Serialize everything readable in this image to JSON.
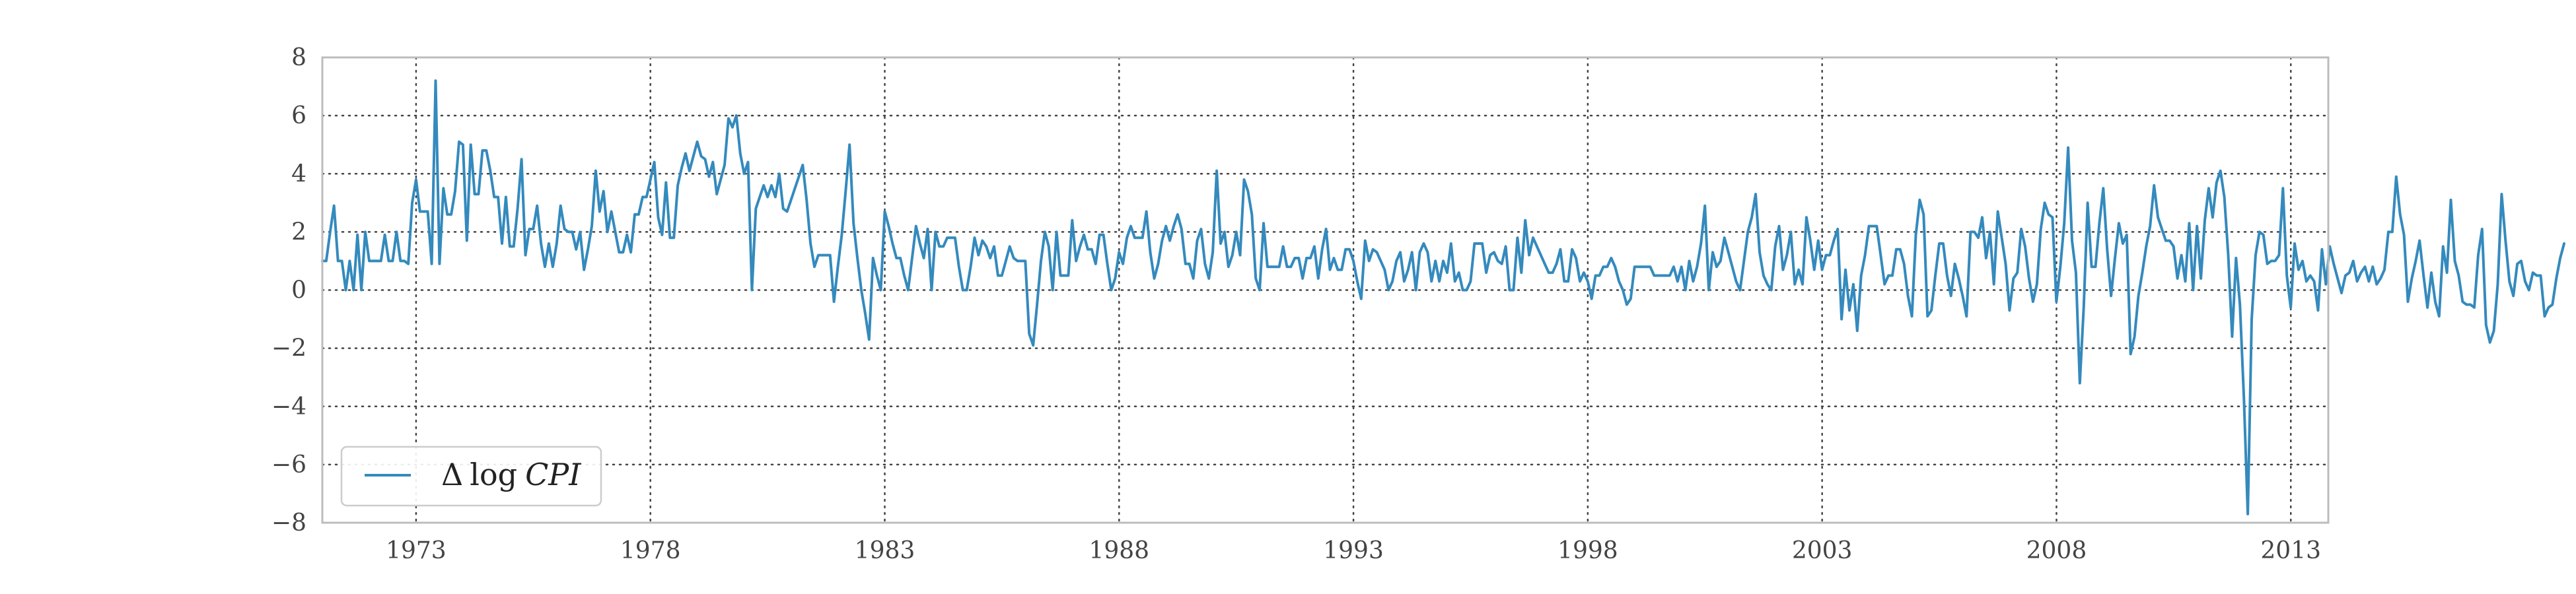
{
  "chart_data": {
    "type": "line",
    "xlabel": "",
    "ylabel": "",
    "xlim": [
      1971.0,
      2013.8
    ],
    "ylim": [
      -8,
      8
    ],
    "x_ticks": [
      1973,
      1978,
      1983,
      1988,
      1993,
      1998,
      2003,
      2008,
      2013
    ],
    "x_tick_labels": [
      "1973",
      "1978",
      "1983",
      "1988",
      "1993",
      "1998",
      "2003",
      "2008",
      "2013"
    ],
    "y_ticks": [
      -8,
      -6,
      -4,
      -2,
      0,
      2,
      4,
      6,
      8
    ],
    "y_tick_labels": [
      "−8",
      "−6",
      "−4",
      "−2",
      "0",
      "2",
      "4",
      "6",
      "8"
    ],
    "grid": true,
    "legend": {
      "placement": "lower-left",
      "label_symbol": "Δ",
      "label_func": "log",
      "label_var": "CPI"
    },
    "series": [
      {
        "name": "Δ log CPI",
        "color": "#348ABD",
        "x_start": 1971.0,
        "x_step": 0.08333,
        "values": [
          1.0,
          1.0,
          2.0,
          2.9,
          1.0,
          1.0,
          0.0,
          1.0,
          0.0,
          1.9,
          0.0,
          2.0,
          1.0,
          1.0,
          1.0,
          1.0,
          1.9,
          1.0,
          1.0,
          2.0,
          1.0,
          1.0,
          0.9,
          3.0,
          3.8,
          2.7,
          2.7,
          2.7,
          0.9,
          7.2,
          0.9,
          3.5,
          2.6,
          2.6,
          3.4,
          5.1,
          5.0,
          1.7,
          5.0,
          3.3,
          3.3,
          4.8,
          4.8,
          4.1,
          3.2,
          3.2,
          1.6,
          3.2,
          1.5,
          1.5,
          2.8,
          4.5,
          1.2,
          2.1,
          2.1,
          2.9,
          1.6,
          0.8,
          1.6,
          0.8,
          1.6,
          2.9,
          2.1,
          2.0,
          2.0,
          1.4,
          2.0,
          0.7,
          1.4,
          2.2,
          4.1,
          2.7,
          3.4,
          2.0,
          2.7,
          2.0,
          1.3,
          1.3,
          1.9,
          1.3,
          2.6,
          2.6,
          3.2,
          3.2,
          3.8,
          4.4,
          2.5,
          1.9,
          3.7,
          1.8,
          1.8,
          3.6,
          4.2,
          4.7,
          4.1,
          4.6,
          5.1,
          4.6,
          4.5,
          3.9,
          4.4,
          3.3,
          3.8,
          4.3,
          5.9,
          5.6,
          6.0,
          4.7,
          4.0,
          4.4,
          0.0,
          2.8,
          3.2,
          3.6,
          3.2,
          3.6,
          3.2,
          4.0,
          2.8,
          2.7,
          3.1,
          3.5,
          3.9,
          4.3,
          3.1,
          1.6,
          0.8,
          1.2,
          1.2,
          1.2,
          1.2,
          -0.4,
          0.8,
          1.9,
          3.4,
          5.0,
          2.3,
          1.1,
          0.0,
          -0.8,
          -1.7,
          1.1,
          0.5,
          0.0,
          2.7,
          2.2,
          1.6,
          1.1,
          1.1,
          0.5,
          0.0,
          1.1,
          2.2,
          1.6,
          1.1,
          2.1,
          0.0,
          2.0,
          1.5,
          1.5,
          1.8,
          1.8,
          1.8,
          0.8,
          0.0,
          0.0,
          0.8,
          1.8,
          1.2,
          1.7,
          1.5,
          1.1,
          1.5,
          0.5,
          0.5,
          1.0,
          1.5,
          1.1,
          1.0,
          1.0,
          1.0,
          -1.5,
          -1.9,
          -0.5,
          1.0,
          2.0,
          1.5,
          0.0,
          2.0,
          0.5,
          0.5,
          0.5,
          2.4,
          1.0,
          1.5,
          1.9,
          1.4,
          1.4,
          0.9,
          1.9,
          1.9,
          0.9,
          0.0,
          0.4,
          1.3,
          0.9,
          1.8,
          2.2,
          1.8,
          1.8,
          1.8,
          2.7,
          1.3,
          0.4,
          0.9,
          1.7,
          2.2,
          1.7,
          2.2,
          2.6,
          2.1,
          0.9,
          0.9,
          0.4,
          1.7,
          2.1,
          0.9,
          0.4,
          1.3,
          4.1,
          1.6,
          2.0,
          0.8,
          1.2,
          2.0,
          1.2,
          3.8,
          3.4,
          2.6,
          0.4,
          0.0,
          2.3,
          0.8,
          0.8,
          0.8,
          0.8,
          1.5,
          0.8,
          0.8,
          1.1,
          1.1,
          0.4,
          1.1,
          1.1,
          1.5,
          0.4,
          1.4,
          2.1,
          0.7,
          1.1,
          0.7,
          0.7,
          1.4,
          1.4,
          1.0,
          0.3,
          -0.3,
          1.7,
          1.0,
          1.4,
          1.3,
          1.0,
          0.7,
          0.0,
          0.3,
          1.0,
          1.3,
          0.3,
          0.7,
          1.3,
          0.0,
          1.3,
          1.6,
          1.3,
          0.3,
          1.0,
          0.3,
          1.0,
          0.6,
          1.6,
          0.3,
          0.6,
          0.0,
          0.0,
          0.3,
          1.6,
          1.6,
          1.6,
          0.6,
          1.2,
          1.3,
          1.0,
          0.9,
          1.5,
          0.0,
          0.0,
          1.8,
          0.6,
          2.4,
          1.2,
          1.8,
          1.5,
          1.2,
          0.9,
          0.6,
          0.6,
          0.9,
          1.4,
          0.3,
          0.3,
          1.4,
          1.1,
          0.3,
          0.6,
          0.3,
          -0.3,
          0.5,
          0.5,
          0.8,
          0.8,
          1.1,
          0.8,
          0.3,
          0.0,
          -0.5,
          -0.3,
          0.8,
          0.8,
          0.8,
          0.8,
          0.8,
          0.5,
          0.5,
          0.5,
          0.5,
          0.5,
          0.8,
          0.3,
          0.8,
          0.0,
          1.0,
          0.3,
          0.8,
          1.6,
          2.9,
          0.0,
          1.3,
          0.8,
          1.0,
          1.8,
          1.3,
          0.8,
          0.3,
          0.0,
          1.0,
          2.0,
          2.5,
          3.3,
          1.3,
          0.5,
          0.2,
          0.0,
          1.5,
          2.2,
          0.7,
          1.2,
          2.0,
          0.2,
          0.7,
          0.2,
          2.5,
          1.7,
          0.7,
          1.7,
          0.7,
          1.2,
          1.2,
          1.7,
          2.1,
          -1.0,
          0.7,
          -0.7,
          0.2,
          -1.4,
          0.5,
          1.2,
          2.2,
          2.2,
          2.2,
          1.2,
          0.2,
          0.5,
          0.5,
          1.4,
          1.4,
          0.9,
          -0.2,
          -0.9,
          1.9,
          3.1,
          2.6,
          -0.9,
          -0.7,
          0.5,
          1.6,
          1.6,
          0.5,
          -0.2,
          0.9,
          0.4,
          -0.2,
          -0.9,
          2.0,
          2.0,
          1.8,
          2.5,
          1.1,
          2.0,
          0.2,
          2.7,
          1.8,
          0.9,
          -0.7,
          0.4,
          0.6,
          2.1,
          1.5,
          0.4,
          -0.4,
          0.2,
          2.1,
          3.0,
          2.6,
          2.5,
          -0.4,
          0.8,
          2.3,
          4.9,
          1.7,
          0.6,
          -3.2,
          -0.6,
          3.0,
          0.8,
          0.8,
          2.3,
          3.5,
          1.4,
          -0.2,
          1.1,
          2.3,
          1.6,
          1.9,
          -2.2,
          -1.6,
          -0.2,
          0.6,
          1.5,
          2.2,
          3.6,
          2.5,
          2.1,
          1.7,
          1.7,
          1.5,
          0.4,
          1.2,
          0.3,
          2.3,
          0.0,
          2.2,
          0.4,
          2.4,
          3.5,
          2.5,
          3.7,
          4.1,
          3.2,
          1.2,
          -1.6,
          1.1,
          -0.5,
          -3.7,
          -7.7,
          -1.0,
          1.2,
          2.0,
          1.9,
          0.9,
          1.0,
          1.0,
          1.2,
          3.5,
          0.5,
          -0.6,
          1.6,
          0.7,
          1.0,
          0.3,
          0.5,
          0.3,
          -0.7,
          1.4,
          0.2,
          1.5,
          0.9,
          0.4,
          -0.1,
          0.5,
          0.6,
          1.0,
          0.3,
          0.6,
          0.8,
          0.3,
          0.8,
          0.2,
          0.4,
          0.7,
          2.0,
          2.0,
          3.9,
          2.6,
          1.9,
          -0.4,
          0.4,
          1.0,
          1.7,
          0.5,
          -0.6,
          0.6,
          -0.4,
          -0.9,
          1.5,
          0.6,
          3.1,
          1.0,
          0.5,
          -0.4,
          -0.5,
          -0.5,
          -0.6,
          1.2,
          2.1,
          -1.2,
          -1.8,
          -1.4,
          0.2,
          3.3,
          1.7,
          0.3,
          -0.2,
          0.9,
          1.0,
          0.3,
          0.0,
          0.6,
          0.5,
          0.5,
          -0.9,
          -0.6,
          -0.5,
          0.4,
          1.1,
          1.6
        ]
      }
    ]
  }
}
